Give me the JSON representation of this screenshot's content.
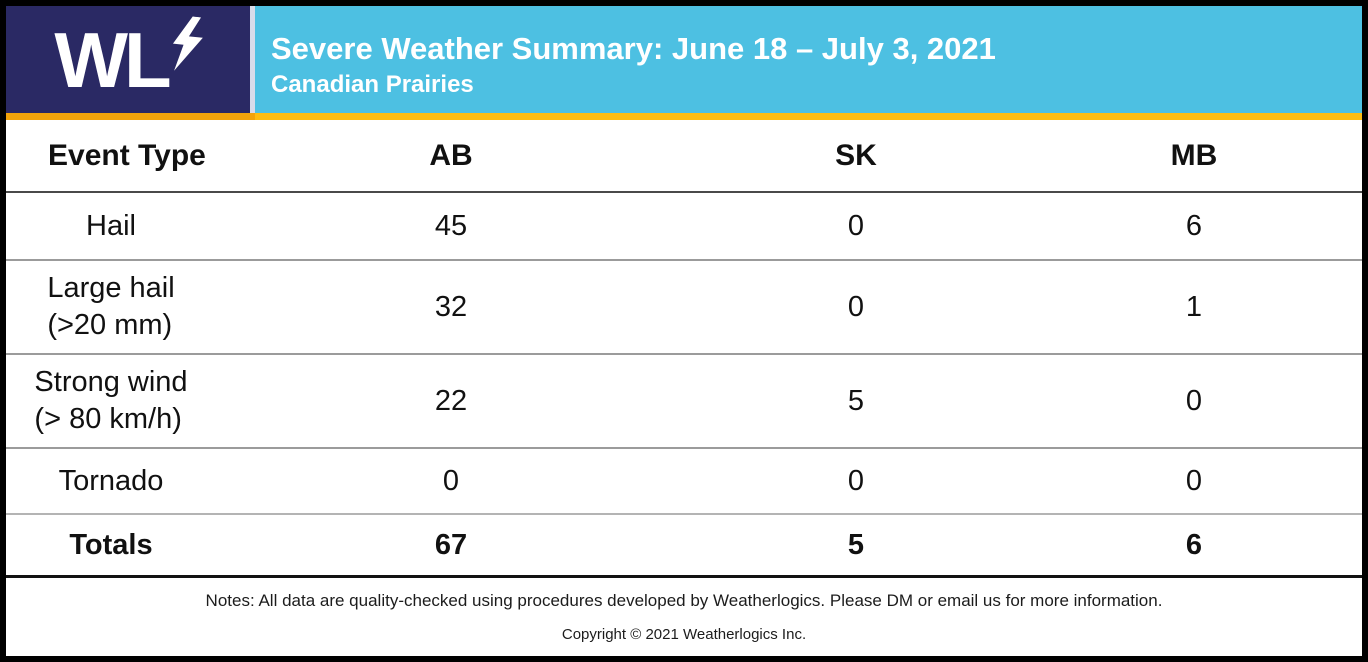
{
  "header": {
    "logo_text": "WL",
    "title": "Severe Weather Summary: June 18 – July 3, 2021",
    "subtitle": "Canadian Prairies"
  },
  "colors": {
    "logo_navy": "#2A2964",
    "header_blue": "#4DC0E2",
    "accent_yellow_left": "#F2A30B",
    "accent_yellow_right": "#FDBD12",
    "border_black": "#000000"
  },
  "table": {
    "columns": [
      "Event Type",
      "AB",
      "SK",
      "MB"
    ],
    "rows": [
      {
        "label_line1": "Hail",
        "label_line2": "",
        "values": [
          "45",
          "0",
          "6"
        ],
        "bold": false
      },
      {
        "label_line1": "Large hail",
        "label_line2": "(>20 mm)",
        "values": [
          "32",
          "0",
          "1"
        ],
        "bold": false
      },
      {
        "label_line1": "Strong wind",
        "label_line2": "(> 80 km/h)",
        "values": [
          "22",
          "5",
          "0"
        ],
        "bold": false
      },
      {
        "label_line1": "Tornado",
        "label_line2": "",
        "values": [
          "0",
          "0",
          "0"
        ],
        "bold": false
      },
      {
        "label_line1": "Totals",
        "label_line2": "",
        "values": [
          "67",
          "5",
          "6"
        ],
        "bold": true
      }
    ]
  },
  "footer": {
    "notes": "Notes: All data are quality-checked using procedures developed by Weatherlogics. Please DM or email us for more information.",
    "copyright": "Copyright © 2021 Weatherlogics Inc."
  },
  "chart_data": {
    "type": "table",
    "title": "Severe Weather Summary: June 18 – July 3, 2021",
    "subtitle": "Canadian Prairies",
    "columns": [
      "Event Type",
      "AB",
      "SK",
      "MB"
    ],
    "rows": [
      [
        "Hail",
        45,
        0,
        6
      ],
      [
        "Large hail (>20 mm)",
        32,
        0,
        1
      ],
      [
        "Strong wind (> 80 km/h)",
        22,
        5,
        0
      ],
      [
        "Tornado",
        0,
        0,
        0
      ],
      [
        "Totals",
        67,
        5,
        6
      ]
    ]
  }
}
